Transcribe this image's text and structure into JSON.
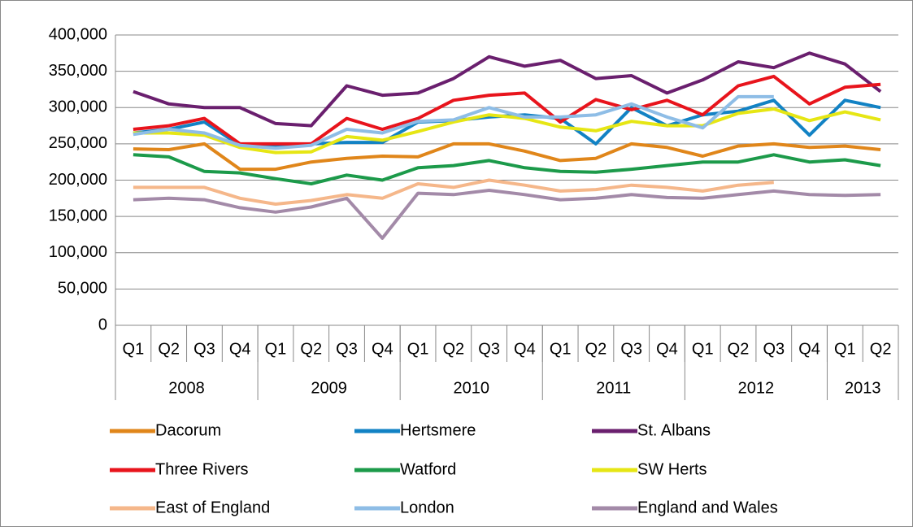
{
  "chart_data": {
    "type": "line",
    "categories": [
      "Q1",
      "Q2",
      "Q3",
      "Q4",
      "Q1",
      "Q2",
      "Q3",
      "Q4",
      "Q1",
      "Q2",
      "Q3",
      "Q4",
      "Q1",
      "Q2",
      "Q3",
      "Q4",
      "Q1",
      "Q2",
      "Q3",
      "Q4",
      "Q1",
      "Q2"
    ],
    "x_groups": [
      "2008",
      "2009",
      "2010",
      "2011",
      "2012",
      "2013"
    ],
    "ylim": [
      0,
      400000
    ],
    "yticks": [
      0,
      {
        "value": 50000,
        "label": "50,000"
      },
      {
        "value": 100000,
        "label": "100,000"
      },
      {
        "value": 150000,
        "label": "150,000"
      },
      {
        "value": 200000,
        "label": "200,000"
      },
      {
        "value": 250000,
        "label": "250,000"
      },
      {
        "value": 300000,
        "label": "300,000"
      },
      {
        "value": 350000,
        "label": "350,000"
      },
      {
        "value": 400000,
        "label": "400,000"
      }
    ],
    "grid": true,
    "legend": "bottom",
    "series": [
      {
        "name": "Dacorum",
        "color": "#e0861a",
        "values": [
          243000,
          242000,
          250000,
          215000,
          215000,
          225000,
          230000,
          233000,
          232000,
          250000,
          250000,
          240000,
          227000,
          230000,
          250000,
          245000,
          233000,
          247000,
          250000,
          245000,
          247000,
          242000
        ]
      },
      {
        "name": "Hertsmere",
        "color": "#1282c4",
        "values": [
          265000,
          270000,
          280000,
          248000,
          248000,
          250000,
          252000,
          252000,
          280000,
          282000,
          287000,
          290000,
          285000,
          250000,
          300000,
          275000,
          290000,
          295000,
          310000,
          262000,
          310000,
          300000
        ]
      },
      {
        "name": "St. Albans",
        "color": "#6a1f6e",
        "values": [
          322000,
          305000,
          300000,
          300000,
          278000,
          275000,
          330000,
          317000,
          320000,
          340000,
          370000,
          357000,
          365000,
          340000,
          344000,
          320000,
          338000,
          363000,
          355000,
          375000,
          360000,
          322000
        ]
      },
      {
        "name": "Three Rivers",
        "color": "#e8141c",
        "values": [
          270000,
          275000,
          285000,
          250000,
          250000,
          250000,
          285000,
          270000,
          285000,
          310000,
          317000,
          320000,
          280000,
          311000,
          297000,
          310000,
          290000,
          330000,
          343000,
          305000,
          328000,
          332000
        ]
      },
      {
        "name": "Watford",
        "color": "#1c9a4a",
        "values": [
          235000,
          232000,
          212000,
          210000,
          202000,
          195000,
          207000,
          200000,
          217000,
          220000,
          227000,
          217000,
          212000,
          211000,
          215000,
          220000,
          225000,
          225000,
          235000,
          225000,
          228000,
          220000
        ]
      },
      {
        "name": "SW Herts",
        "color": "#e6e614",
        "values": [
          265000,
          265000,
          262000,
          245000,
          238000,
          239000,
          260000,
          255000,
          267000,
          280000,
          290000,
          285000,
          273000,
          268000,
          281000,
          275000,
          275000,
          292000,
          298000,
          282000,
          294000,
          283000
        ]
      },
      {
        "name": "East of England",
        "color": "#f5b78a",
        "values": [
          190000,
          190000,
          190000,
          175000,
          167000,
          172000,
          180000,
          175000,
          195000,
          190000,
          200000,
          193000,
          185000,
          187000,
          193000,
          190000,
          185000,
          193000,
          197000,
          null,
          null,
          null
        ]
      },
      {
        "name": "London",
        "color": "#8ebde6",
        "values": [
          263000,
          270000,
          265000,
          248000,
          244000,
          248000,
          270000,
          265000,
          281000,
          283000,
          300000,
          287000,
          287000,
          290000,
          305000,
          287000,
          272000,
          315000,
          315000,
          null,
          null,
          null
        ]
      },
      {
        "name": "England and Wales",
        "color": "#a38aa8",
        "values": [
          173000,
          175000,
          173000,
          162000,
          156000,
          163000,
          175000,
          120000,
          182000,
          180000,
          186000,
          180000,
          173000,
          175000,
          180000,
          176000,
          175000,
          180000,
          185000,
          180000,
          179000,
          180000
        ]
      }
    ]
  }
}
